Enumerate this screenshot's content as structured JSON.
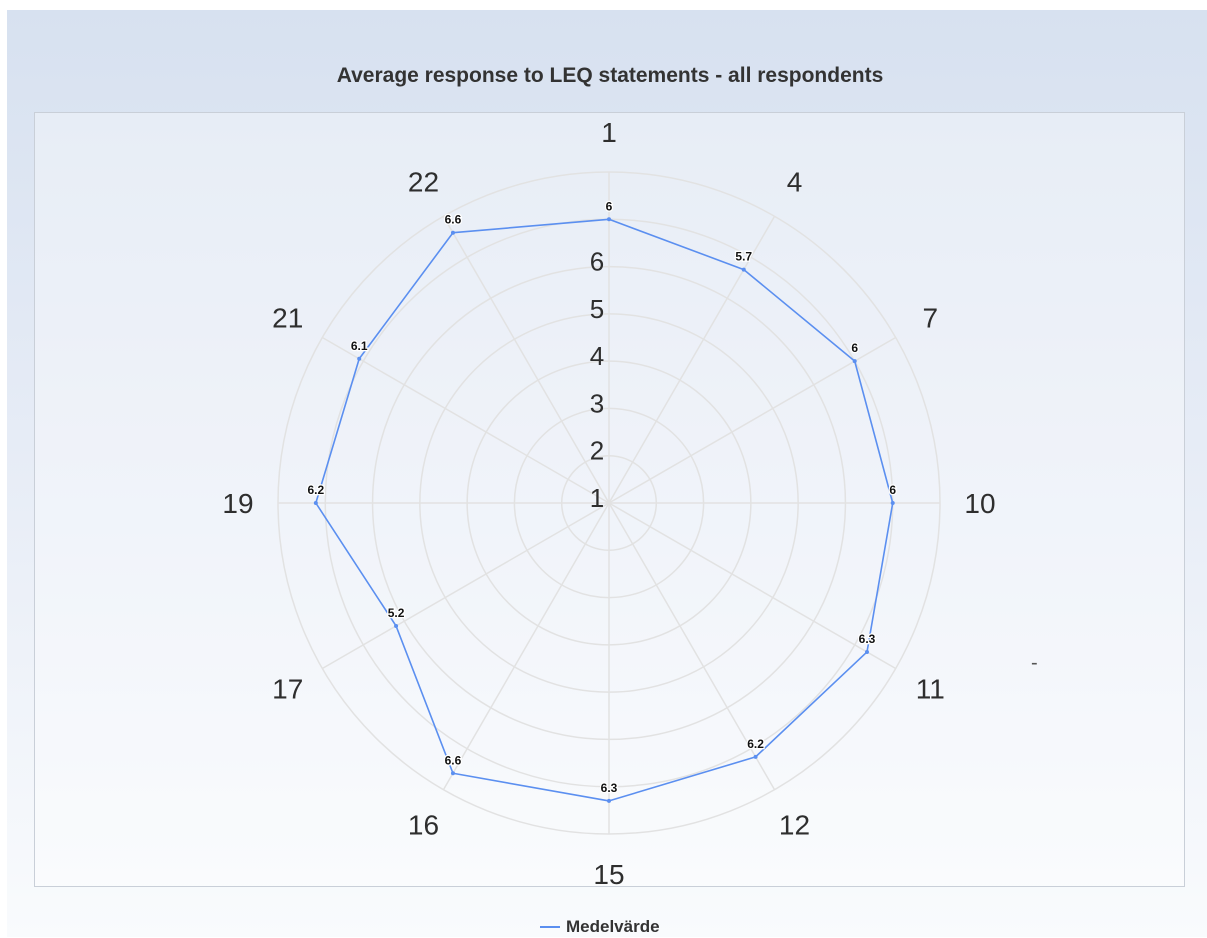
{
  "chart_data": {
    "type": "radar",
    "title": "Average response to LEQ statements - all respondents",
    "categories": [
      "1",
      "4",
      "7",
      "10",
      "11",
      "12",
      "15",
      "16",
      "17",
      "19",
      "21",
      "22"
    ],
    "series": [
      {
        "name": "Medelvärde",
        "values": [
          6,
          5.7,
          6,
          6,
          6.3,
          6.2,
          6.3,
          6.6,
          5.2,
          6.2,
          6.1,
          6.6
        ],
        "color": "#5b8ff0"
      }
    ],
    "value_labels": [
      "6",
      "5.7",
      "6",
      "6",
      "6.3",
      "6.2",
      "6.3",
      "6.6",
      "5.2",
      "6.2",
      "6.1",
      "6.6"
    ],
    "radial_ticks": [
      "1",
      "2",
      "3",
      "4",
      "5",
      "6"
    ],
    "rlim": [
      0,
      7
    ],
    "grid": true,
    "legend_position": "bottom-center",
    "extra_mark": "-"
  }
}
